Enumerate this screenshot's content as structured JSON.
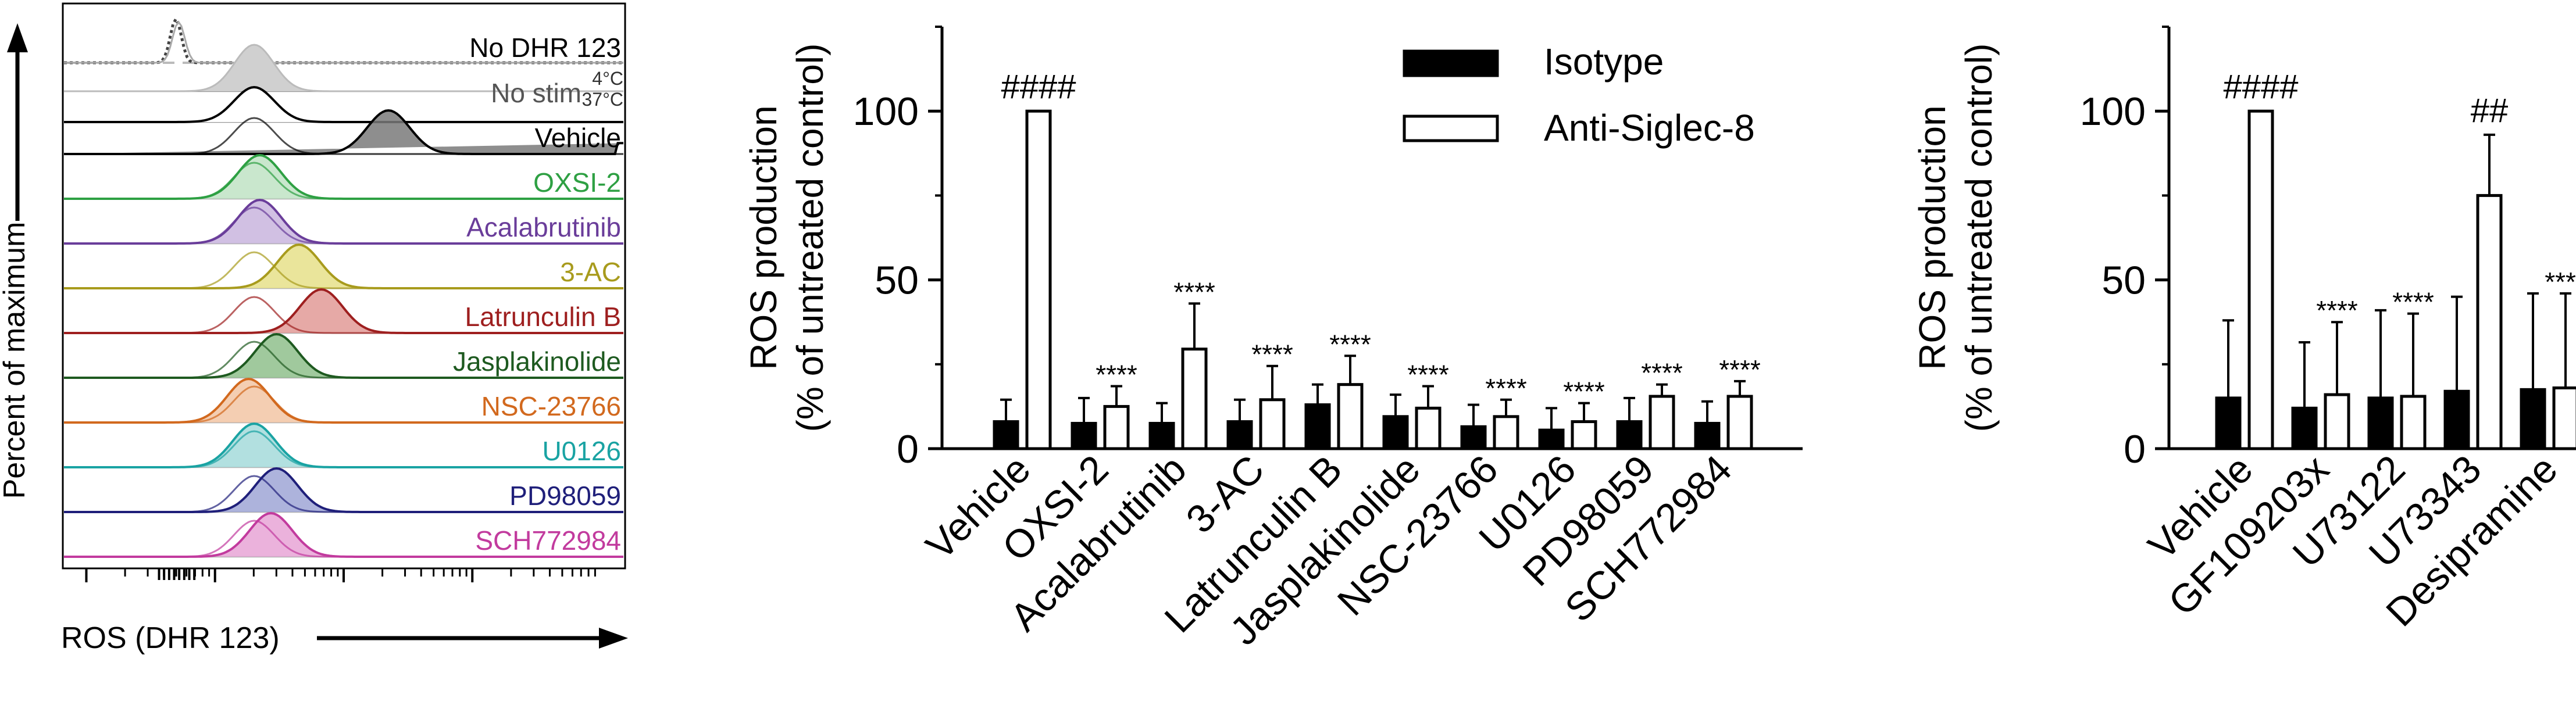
{
  "chart_data": [
    {
      "type": "area",
      "subtype": "histogram-overlay",
      "xlabel": "ROS (DHR 123)",
      "ylabel": "Percent of maximum",
      "axis_scale": "log",
      "grid": false,
      "control_labels": [
        {
          "label": "No DHR 123",
          "color": "#000000"
        },
        {
          "label": "No stim",
          "color": "#555555"
        },
        {
          "label": "4°C",
          "color": "#333333"
        },
        {
          "label": "37°C",
          "color": "#333333"
        }
      ],
      "tracks": [
        {
          "label": "Vehicle",
          "color": "#000000",
          "fill": "#7a7a7a",
          "peak": 0.58
        },
        {
          "label": "OXSI-2",
          "color": "#2ea043",
          "fill": "#bfe3c4",
          "peak": 0.35
        },
        {
          "label": "Acalabrutinib",
          "color": "#6a3d9a",
          "fill": "#c9b5de",
          "peak": 0.35
        },
        {
          "label": "3-AC",
          "color": "#a89b1d",
          "fill": "#e6e18a",
          "peak": 0.42
        },
        {
          "label": "Latrunculin B",
          "color": "#9e1f1f",
          "fill": "#e29a97",
          "peak": 0.46
        },
        {
          "label": "Jasplakinolide",
          "color": "#1e5a20",
          "fill": "#8fbf8c",
          "peak": 0.38
        },
        {
          "label": "NSC-23766",
          "color": "#d2691e",
          "fill": "#f2c5a4",
          "peak": 0.33
        },
        {
          "label": "U0126",
          "color": "#1aa3a3",
          "fill": "#a4dada",
          "peak": 0.34
        },
        {
          "label": "PD98059",
          "color": "#1f1f7a",
          "fill": "#9fa6d6",
          "peak": 0.38
        },
        {
          "label": "SCH772984",
          "color": "#c23b9e",
          "fill": "#e8a4d6",
          "peak": 0.37
        }
      ]
    },
    {
      "type": "bar",
      "categories": [
        "Vehicle",
        "OXSI-2",
        "Acalabrutinib",
        "3-AC",
        "Latrunculin B",
        "Jasplakinolide",
        "NSC-23766",
        "U0126",
        "PD98059",
        "SCH772984"
      ],
      "series": [
        {
          "name": "Isotype",
          "color": "#000000",
          "values": [
            8,
            7.5,
            7.5,
            8,
            13,
            9.5,
            6.5,
            5.5,
            8,
            7.5
          ],
          "errors": [
            6.5,
            7.5,
            6,
            6.5,
            6,
            6.5,
            6.5,
            6.5,
            7,
            6.5
          ]
        },
        {
          "name": "Anti-Siglec-8",
          "color": "#ffffff",
          "values": [
            100,
            12.5,
            29.5,
            14.5,
            19,
            12,
            9.5,
            8,
            15.5,
            15.5
          ],
          "errors": [
            0,
            6,
            13.5,
            10,
            8.5,
            6.5,
            5,
            5.5,
            3.5,
            4.5
          ]
        }
      ],
      "annotations": [
        "####",
        "****",
        "****",
        "****",
        "****",
        "****",
        "****",
        "****",
        "****",
        "****"
      ],
      "ylabel_line1": "ROS production",
      "ylabel_line2": "(% of untreated control)",
      "ylim": [
        0,
        125
      ],
      "yticks": [
        0,
        50,
        100
      ],
      "legend_position": "top-right"
    },
    {
      "type": "bar",
      "categories": [
        "Vehicle",
        "GF109203x",
        "U73122",
        "U73343",
        "Desipramine"
      ],
      "series": [
        {
          "name": "Isotype",
          "color": "#000000",
          "values": [
            15,
            12,
            15,
            17,
            17.5
          ],
          "errors": [
            23,
            19.5,
            26,
            28,
            28.5
          ]
        },
        {
          "name": "Anti-Siglec-8",
          "color": "#ffffff",
          "values": [
            100,
            16,
            15.5,
            75,
            18
          ],
          "errors": [
            0,
            21.5,
            24.5,
            18,
            28
          ]
        }
      ],
      "annotations": [
        "####",
        "****",
        "****",
        "##",
        "****"
      ],
      "ylabel_line1": "ROS production",
      "ylabel_line2": "(% of untreated control)",
      "ylim": [
        0,
        125
      ],
      "yticks": [
        0,
        50,
        100
      ]
    }
  ]
}
